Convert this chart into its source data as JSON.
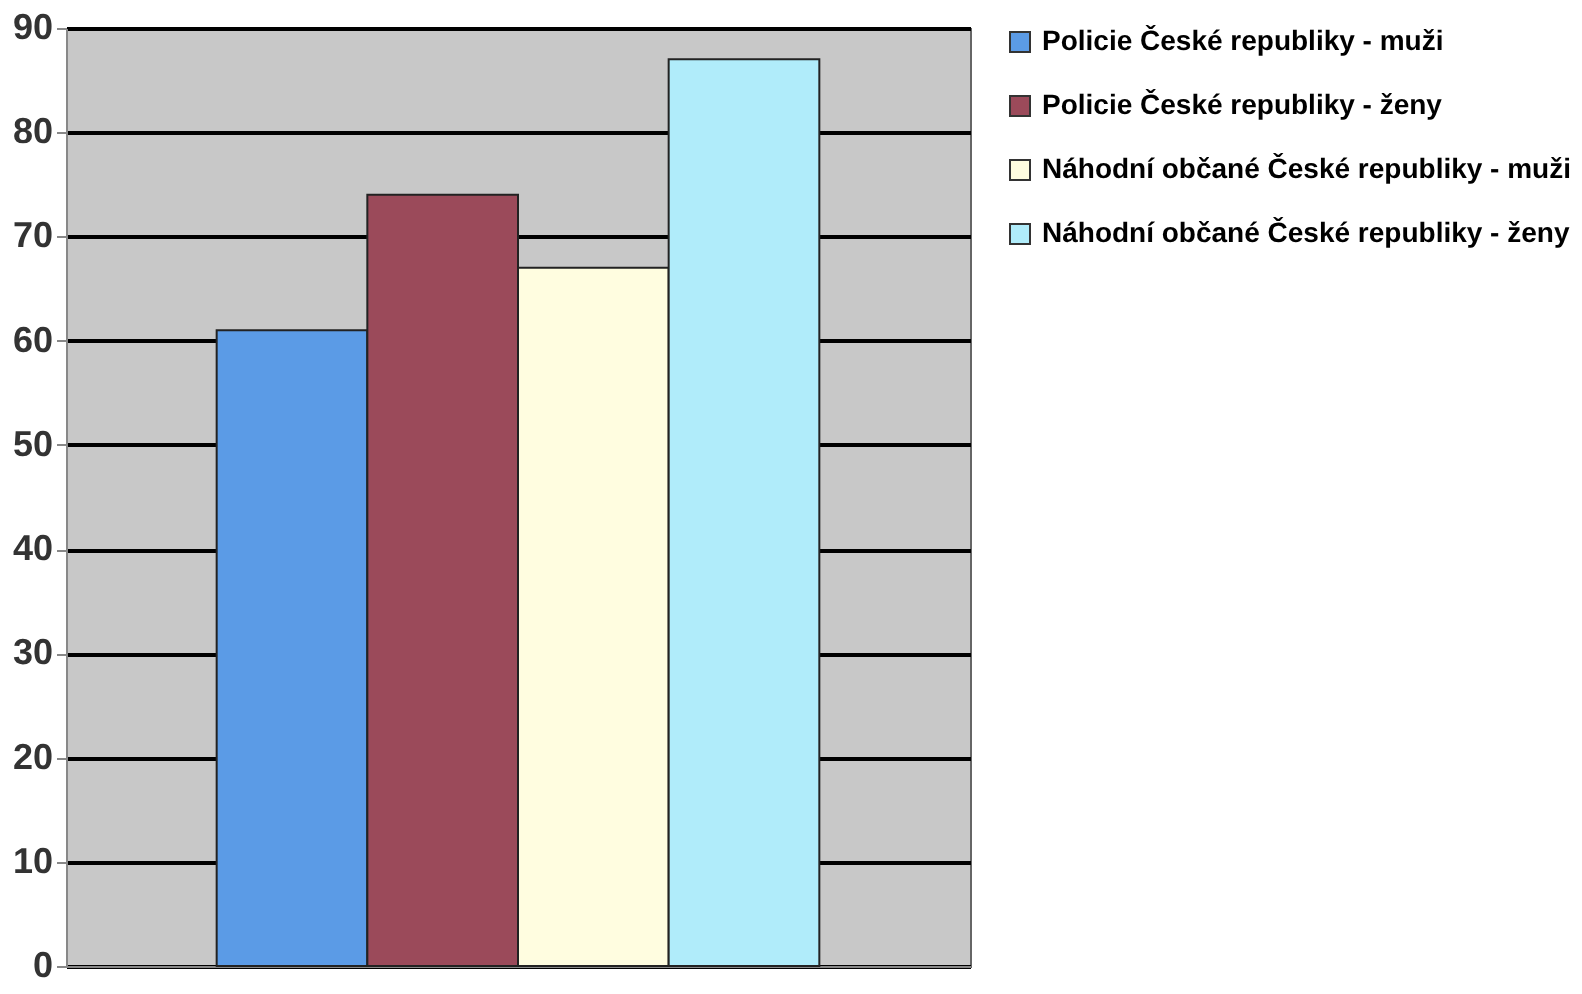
{
  "chart_data": {
    "type": "bar",
    "categories": [
      null
    ],
    "series": [
      {
        "name": "Policie České republiky - muži",
        "color": "#5b9be6",
        "values": [
          61
        ]
      },
      {
        "name": "Policie České republiky - ženy",
        "color": "#9b4a5a",
        "values": [
          74
        ]
      },
      {
        "name": "Náhodní občané České republiky - muži",
        "color": "#fffde0",
        "values": [
          67
        ]
      },
      {
        "name": "Náhodní občané České republiky - ženy",
        "color": "#b0ecfa",
        "values": [
          87
        ]
      }
    ],
    "ylim": [
      0,
      90
    ],
    "yticks": [
      0,
      10,
      20,
      30,
      40,
      50,
      60,
      70,
      80,
      90
    ],
    "grid": "y",
    "legend": "right",
    "tick_labels": "y"
  }
}
